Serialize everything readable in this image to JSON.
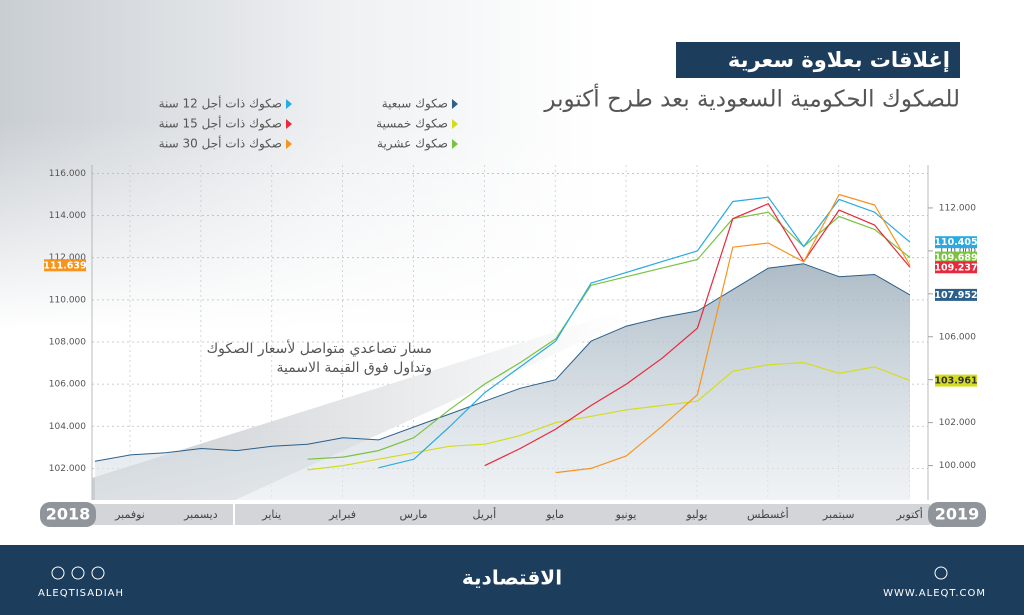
{
  "chart_data": {
    "type": "line",
    "title": "إغلاقات بعلاوة سعرية",
    "subtitle": "للصكوك الحكومية السعودية بعد طرح أكتوبر",
    "annotation": [
      "مسار تصاعدي متواصل لأسعار الصكوك",
      "وتداول فوق القيمة الاسمية"
    ],
    "year_labels": [
      "2018",
      "2019"
    ],
    "categories": [
      "نوفمبر",
      null,
      "ديسمبر",
      null,
      "يناير",
      null,
      "فبراير",
      null,
      "مارس",
      null,
      "أبريل",
      null,
      "مايو",
      null,
      "يونيو",
      null,
      "يوليو",
      null,
      "أغسطس",
      null,
      "سبتمبر",
      null,
      "أكتوبر",
      null
    ],
    "series": [
      {
        "name": "صكوك سبعية",
        "color": "#2c5f8a",
        "axis": "y2",
        "area": true,
        "values": [
          100.2,
          100.5,
          100.6,
          100.8,
          100.7,
          100.9,
          101.0,
          101.3,
          101.2,
          101.8,
          102.4,
          103.0,
          103.6,
          104.0,
          105.8,
          106.5,
          106.9,
          107.2,
          108.2,
          109.2,
          109.4,
          108.8,
          108.9,
          107.952
        ]
      },
      {
        "name": "صكوك خمسية",
        "color": "#d4dc1e",
        "axis": "y2",
        "values": [
          null,
          null,
          null,
          null,
          null,
          null,
          99.8,
          100.0,
          100.3,
          100.6,
          100.9,
          101.0,
          101.4,
          102.0,
          102.3,
          102.6,
          102.8,
          103.0,
          104.4,
          104.7,
          104.8,
          104.3,
          104.6,
          103.961
        ]
      },
      {
        "name": "صكوك عشرية",
        "color": "#7cc242",
        "axis": "y2",
        "values": [
          null,
          null,
          null,
          null,
          null,
          null,
          100.3,
          100.4,
          100.7,
          101.3,
          102.6,
          103.8,
          104.8,
          105.9,
          108.4,
          108.8,
          109.2,
          109.6,
          111.5,
          111.8,
          110.2,
          111.6,
          111.0,
          109.689
        ]
      },
      {
        "name": "صكوك ذات أجل 12 سنة",
        "color": "#29abe2",
        "axis": "y2",
        "values": [
          null,
          null,
          null,
          null,
          null,
          null,
          null,
          null,
          99.9,
          100.3,
          101.8,
          103.4,
          104.6,
          105.8,
          108.5,
          109.0,
          109.5,
          110.0,
          112.3,
          112.5,
          110.2,
          112.4,
          111.8,
          110.405
        ]
      },
      {
        "name": "صكوك ذات أجل 15 سنة",
        "color": "#e8283c",
        "axis": "y2",
        "values": [
          null,
          null,
          null,
          null,
          null,
          null,
          null,
          null,
          null,
          null,
          null,
          100.0,
          100.8,
          101.7,
          102.8,
          103.8,
          105.0,
          106.4,
          111.5,
          112.2,
          109.5,
          111.9,
          111.2,
          109.237
        ]
      },
      {
        "name": "صكوك ذات أجل 30 سنة",
        "color": "#f7941d",
        "axis": "y",
        "values": [
          null,
          null,
          null,
          null,
          null,
          null,
          null,
          null,
          null,
          null,
          null,
          null,
          null,
          101.8,
          102.0,
          102.6,
          104.0,
          105.5,
          112.5,
          112.7,
          111.8,
          115.0,
          114.5,
          111.639
        ]
      }
    ],
    "ylim": [
      100.5,
      116.4
    ],
    "yticks": [
      {
        "value": 102,
        "label": "102.000"
      },
      {
        "value": 104,
        "label": "104.000"
      },
      {
        "value": 106,
        "label": "106.000"
      },
      {
        "value": 108,
        "label": "108.000"
      },
      {
        "value": 110,
        "label": "110.000"
      },
      {
        "value": 112,
        "label": "112.000"
      },
      {
        "value": 114,
        "label": "114.000"
      },
      {
        "value": 116,
        "label": "116.000"
      }
    ],
    "y2lim": [
      98.4,
      114.0
    ],
    "y2ticks": [
      {
        "value": 100,
        "label": "100.000"
      },
      {
        "value": 102,
        "label": "102.000"
      },
      {
        "value": 104,
        "label": "104.000"
      },
      {
        "value": 106,
        "label": "106.000"
      },
      {
        "value": 108,
        "label": "108.000"
      },
      {
        "value": 110,
        "label": "110.000"
      },
      {
        "value": 112,
        "label": "112.000"
      }
    ],
    "grid": true
  },
  "footer": {
    "social": "ALEQTISADIAH",
    "brand": "الاقتصادية",
    "website": "WWW.ALEQT.COM"
  }
}
